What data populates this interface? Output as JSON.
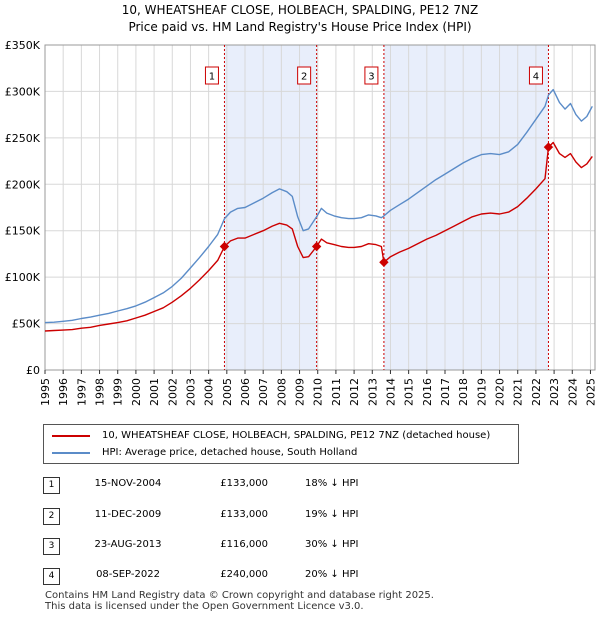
{
  "title_line1": "10, WHEATSHEAF CLOSE, HOLBEACH, SPALDING, PE12 7NZ",
  "title_line2": "Price paid vs. HM Land Registry's House Price Index (HPI)",
  "chart_data": {
    "type": "line",
    "xlabel": "",
    "ylabel": "",
    "xlim": [
      1995.0,
      2025.25
    ],
    "ylim": [
      0,
      350000
    ],
    "y_ticks": [
      0,
      50000,
      100000,
      150000,
      200000,
      250000,
      300000,
      350000
    ],
    "y_tick_labels": [
      "£0",
      "£50K",
      "£100K",
      "£150K",
      "£200K",
      "£250K",
      "£300K",
      "£350K"
    ],
    "x_ticks": [
      1995,
      1996,
      1997,
      1998,
      1999,
      2000,
      2001,
      2002,
      2003,
      2004,
      2005,
      2006,
      2007,
      2008,
      2009,
      2010,
      2011,
      2012,
      2013,
      2014,
      2015,
      2016,
      2017,
      2018,
      2019,
      2020,
      2021,
      2022,
      2023,
      2024,
      2025
    ],
    "x_tick_labels": [
      "1995",
      "1996",
      "1997",
      "1998",
      "1999",
      "2000",
      "2001",
      "2002",
      "2003",
      "2004",
      "2005",
      "2006",
      "2007",
      "2008",
      "2009",
      "2010",
      "2011",
      "2012",
      "2013",
      "2014",
      "2015",
      "2016",
      "2017",
      "2018",
      "2019",
      "2020",
      "2021",
      "2022",
      "2023",
      "2024",
      "2025"
    ],
    "grid": true,
    "shaded_ranges": [
      [
        2004.87,
        2009.94
      ],
      [
        2013.64,
        2022.69
      ]
    ],
    "series": [
      {
        "name": "10, WHEATSHEAF CLOSE, HOLBEACH, SPALDING, PE12 7NZ (detached house)",
        "color": "#cc0000",
        "x": [
          1995.0,
          1995.5,
          1996.0,
          1996.5,
          1997.0,
          1997.5,
          1998.0,
          1998.5,
          1999.0,
          1999.5,
          2000.0,
          2000.5,
          2001.0,
          2001.5,
          2002.0,
          2002.5,
          2003.0,
          2003.5,
          2004.0,
          2004.5,
          2004.87,
          2005.2,
          2005.6,
          2006.0,
          2006.5,
          2007.0,
          2007.5,
          2007.9,
          2008.3,
          2008.6,
          2008.9,
          2009.2,
          2009.5,
          2009.94,
          2010.2,
          2010.5,
          2010.9,
          2011.3,
          2011.7,
          2012.0,
          2012.4,
          2012.8,
          2013.2,
          2013.5,
          2013.64,
          2014.0,
          2014.5,
          2015.0,
          2015.5,
          2016.0,
          2016.5,
          2017.0,
          2017.5,
          2018.0,
          2018.5,
          2019.0,
          2019.5,
          2020.0,
          2020.5,
          2021.0,
          2021.5,
          2022.0,
          2022.5,
          2022.69,
          2022.95,
          2023.3,
          2023.6,
          2023.9,
          2024.2,
          2024.5,
          2024.8,
          2025.1
        ],
        "y": [
          42000,
          42500,
          43000,
          43500,
          45000,
          46000,
          48000,
          49500,
          51000,
          53000,
          56000,
          59000,
          63000,
          67000,
          73000,
          80000,
          88000,
          97000,
          107000,
          118000,
          133000,
          139000,
          142000,
          142000,
          146000,
          150000,
          155000,
          158000,
          156000,
          152000,
          133000,
          121000,
          122000,
          133000,
          141000,
          137000,
          135000,
          133000,
          132000,
          132000,
          133000,
          136000,
          135000,
          133000,
          116000,
          122000,
          127000,
          131000,
          136000,
          141000,
          145000,
          150000,
          155000,
          160000,
          165000,
          168000,
          169000,
          168000,
          170000,
          176000,
          185000,
          195000,
          206000,
          240000,
          245000,
          233000,
          229000,
          233000,
          224000,
          218000,
          222000,
          230000
        ]
      },
      {
        "name": "HPI: Average price, detached house, South Holland",
        "color": "#5b8cc8",
        "x": [
          1995.0,
          1995.5,
          1996.0,
          1996.5,
          1997.0,
          1997.5,
          1998.0,
          1998.5,
          1999.0,
          1999.5,
          2000.0,
          2000.5,
          2001.0,
          2001.5,
          2002.0,
          2002.5,
          2003.0,
          2003.5,
          2004.0,
          2004.5,
          2004.87,
          2005.2,
          2005.6,
          2006.0,
          2006.5,
          2007.0,
          2007.5,
          2007.9,
          2008.3,
          2008.6,
          2008.9,
          2009.2,
          2009.5,
          2009.94,
          2010.2,
          2010.5,
          2010.9,
          2011.3,
          2011.7,
          2012.0,
          2012.4,
          2012.8,
          2013.2,
          2013.5,
          2013.64,
          2014.0,
          2014.5,
          2015.0,
          2015.5,
          2016.0,
          2016.5,
          2017.0,
          2017.5,
          2018.0,
          2018.5,
          2019.0,
          2019.5,
          2020.0,
          2020.5,
          2021.0,
          2021.5,
          2022.0,
          2022.5,
          2022.69,
          2022.95,
          2023.3,
          2023.6,
          2023.9,
          2024.2,
          2024.5,
          2024.8,
          2025.1
        ],
        "y": [
          51000,
          51500,
          52500,
          53500,
          55500,
          57000,
          59000,
          61000,
          63500,
          66000,
          69000,
          73000,
          78000,
          83000,
          90000,
          99000,
          110000,
          121000,
          133000,
          146000,
          163000,
          170000,
          174000,
          175000,
          180000,
          185000,
          191000,
          195000,
          192000,
          187000,
          165000,
          150000,
          152000,
          165000,
          174000,
          169000,
          166000,
          164000,
          163000,
          163000,
          164000,
          167000,
          166000,
          164000,
          166000,
          172000,
          178000,
          184000,
          191000,
          198000,
          205000,
          211000,
          217000,
          223000,
          228000,
          232000,
          233000,
          232000,
          235000,
          243000,
          256000,
          270000,
          284000,
          296000,
          302000,
          288000,
          281000,
          287000,
          275000,
          268000,
          273000,
          284000
        ]
      }
    ],
    "sales_markers": [
      {
        "label": "1",
        "x": 2004.87,
        "y": 133000
      },
      {
        "label": "2",
        "x": 2009.94,
        "y": 133000
      },
      {
        "label": "3",
        "x": 2013.64,
        "y": 116000
      },
      {
        "label": "4",
        "x": 2022.69,
        "y": 240000
      }
    ]
  },
  "legend": {
    "red_label": "10, WHEATSHEAF CLOSE, HOLBEACH, SPALDING, PE12 7NZ (detached house)",
    "blue_label": "HPI: Average price, detached house, South Holland"
  },
  "sales": [
    {
      "num": "1",
      "date": "15-NOV-2004",
      "price": "£133,000",
      "hpi": "18% ↓ HPI"
    },
    {
      "num": "2",
      "date": "11-DEC-2009",
      "price": "£133,000",
      "hpi": "19% ↓ HPI"
    },
    {
      "num": "3",
      "date": "23-AUG-2013",
      "price": "£116,000",
      "hpi": "30% ↓ HPI"
    },
    {
      "num": "4",
      "date": "08-SEP-2022",
      "price": "£240,000",
      "hpi": "20% ↓ HPI"
    }
  ],
  "footer": {
    "line1": "Contains HM Land Registry data © Crown copyright and database right 2025.",
    "line2": "This data is licensed under the Open Government Licence v3.0."
  }
}
